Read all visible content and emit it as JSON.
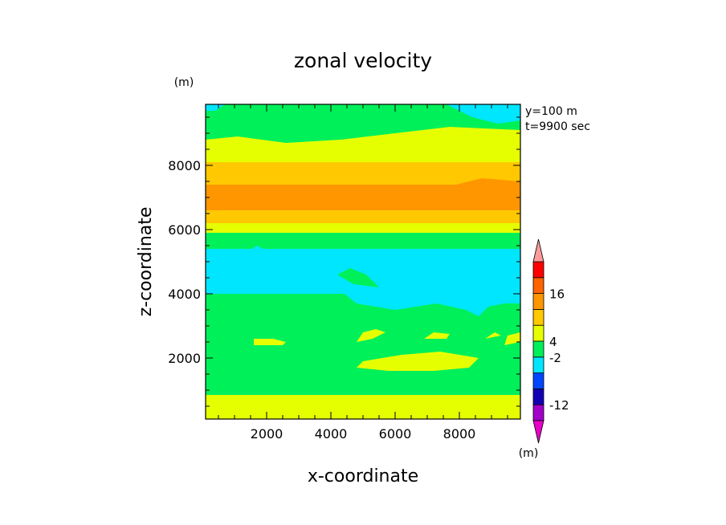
{
  "chart_data": {
    "type": "heatmap",
    "title": "zonal velocity",
    "xlabel": "x-coordinate",
    "ylabel": "z-coordinate",
    "x_unit": "(m)",
    "y_unit": "(m)",
    "info": [
      "y=100 m",
      "t=9900 sec"
    ],
    "xlim": [
      100,
      9900
    ],
    "ylim": [
      100,
      9900
    ],
    "xticks": [
      2000,
      4000,
      6000,
      8000
    ],
    "yticks": [
      2000,
      4000,
      6000,
      8000
    ],
    "colorbar": {
      "unit": "(m)",
      "labels": [
        {
          "text": "16",
          "index": 8
        },
        {
          "text": "4",
          "index": 5
        },
        {
          "text": "-2",
          "index": 4
        },
        {
          "text": "-12",
          "index": 1
        }
      ]
    },
    "levels": [
      {
        "color": "#e800c8"
      },
      {
        "color": "#a000c8"
      },
      {
        "color": "#1400b4"
      },
      {
        "color": "#0046ff"
      },
      {
        "color": "#00e6ff"
      },
      {
        "color": "#00f05a"
      },
      {
        "color": "#e6ff00"
      },
      {
        "color": "#ffc800"
      },
      {
        "color": "#ff9600"
      },
      {
        "color": "#ff6400"
      },
      {
        "color": "#ff0000"
      },
      {
        "color": "#ff9a9a"
      }
    ],
    "bands": [
      {
        "z": [
          100,
          300
        ],
        "level": 6
      },
      {
        "z": [
          300,
          850
        ],
        "level": 6
      },
      {
        "z": [
          850,
          2000
        ],
        "level": 5
      },
      {
        "z": [
          2000,
          3000
        ],
        "level": 5
      },
      {
        "z": [
          3000,
          4000
        ],
        "level": 5
      },
      {
        "z": [
          4000,
          5400
        ],
        "level": 4
      },
      {
        "z": [
          5400,
          5900
        ],
        "level": 5
      },
      {
        "z": [
          5900,
          6200
        ],
        "level": 6
      },
      {
        "z": [
          6200,
          6600
        ],
        "level": 7
      },
      {
        "z": [
          6600,
          7400
        ],
        "level": 8
      },
      {
        "z": [
          7400,
          8100
        ],
        "level": 7
      },
      {
        "z": [
          8100,
          8700
        ],
        "level": 6
      },
      {
        "z": [
          8700,
          9500
        ],
        "level": 5
      },
      {
        "z": [
          9500,
          9900
        ],
        "level": 5
      }
    ],
    "patches": [
      {
        "level": 6,
        "points": [
          [
            5000,
            1900
          ],
          [
            6200,
            2100
          ],
          [
            7400,
            2200
          ],
          [
            8600,
            2000
          ],
          [
            8300,
            1700
          ],
          [
            7200,
            1600
          ],
          [
            5800,
            1600
          ],
          [
            4800,
            1700
          ]
        ]
      },
      {
        "level": 6,
        "points": [
          [
            1600,
            2400
          ],
          [
            2500,
            2400
          ],
          [
            2600,
            2500
          ],
          [
            2200,
            2600
          ],
          [
            1600,
            2600
          ]
        ]
      },
      {
        "level": 6,
        "points": [
          [
            4800,
            2500
          ],
          [
            5300,
            2600
          ],
          [
            5700,
            2800
          ],
          [
            5400,
            2900
          ],
          [
            5000,
            2800
          ]
        ]
      },
      {
        "level": 6,
        "points": [
          [
            6900,
            2600
          ],
          [
            7600,
            2600
          ],
          [
            7700,
            2750
          ],
          [
            7200,
            2800
          ]
        ]
      },
      {
        "level": 6,
        "points": [
          [
            8800,
            2600
          ],
          [
            9300,
            2700
          ],
          [
            9100,
            2800
          ]
        ]
      },
      {
        "level": 6,
        "points": [
          [
            9400,
            2400
          ],
          [
            9900,
            2500
          ],
          [
            9900,
            2800
          ],
          [
            9500,
            2700
          ]
        ]
      },
      {
        "level": 6,
        "points": [
          [
            3400,
            100
          ],
          [
            4300,
            100
          ],
          [
            4000,
            250
          ],
          [
            3600,
            250
          ]
        ]
      },
      {
        "level": 4,
        "points": [
          [
            100,
            5300
          ],
          [
            700,
            5400
          ],
          [
            1400,
            5300
          ],
          [
            1700,
            5500
          ],
          [
            2300,
            5200
          ],
          [
            3400,
            5400
          ],
          [
            4200,
            5000
          ],
          [
            5300,
            4600
          ],
          [
            6800,
            5000
          ],
          [
            8200,
            5200
          ],
          [
            9900,
            5200
          ],
          [
            9900,
            3700
          ],
          [
            9400,
            3700
          ],
          [
            8900,
            3600
          ],
          [
            8600,
            3300
          ],
          [
            8200,
            3500
          ],
          [
            7300,
            3700
          ],
          [
            6000,
            3500
          ],
          [
            4800,
            3700
          ],
          [
            4300,
            4100
          ],
          [
            3100,
            4400
          ],
          [
            2000,
            4100
          ],
          [
            1100,
            4200
          ],
          [
            100,
            4100
          ]
        ]
      },
      {
        "level": 4,
        "points": [
          [
            7600,
            9900
          ],
          [
            9900,
            9900
          ],
          [
            9900,
            9400
          ],
          [
            9200,
            9300
          ],
          [
            8400,
            9500
          ]
        ]
      },
      {
        "level": 4,
        "points": [
          [
            100,
            9900
          ],
          [
            700,
            9900
          ],
          [
            400,
            9700
          ],
          [
            100,
            9700
          ]
        ]
      },
      {
        "level": 5,
        "points": [
          [
            4200,
            4600
          ],
          [
            4700,
            4300
          ],
          [
            5500,
            4200
          ],
          [
            5100,
            4600
          ],
          [
            4600,
            4800
          ]
        ]
      },
      {
        "level": 8,
        "points": [
          [
            100,
            6600
          ],
          [
            900,
            6600
          ],
          [
            1300,
            6800
          ],
          [
            700,
            7200
          ],
          [
            100,
            7300
          ]
        ]
      },
      {
        "level": 8,
        "points": [
          [
            6800,
            6600
          ],
          [
            8200,
            6600
          ],
          [
            9900,
            6600
          ],
          [
            9900,
            7500
          ],
          [
            8700,
            7600
          ],
          [
            7500,
            7300
          ],
          [
            7000,
            7000
          ]
        ]
      },
      {
        "level": 8,
        "points": [
          [
            3300,
            7200
          ],
          [
            3600,
            7000
          ],
          [
            4000,
            7050
          ],
          [
            3800,
            7300
          ],
          [
            3400,
            7400
          ]
        ]
      },
      {
        "level": 8,
        "points": [
          [
            4400,
            7300
          ],
          [
            4600,
            7200
          ],
          [
            4800,
            7350
          ],
          [
            4500,
            7400
          ]
        ]
      },
      {
        "level": 6,
        "points": [
          [
            1100,
            8900
          ],
          [
            2600,
            8700
          ],
          [
            4300,
            8800
          ],
          [
            6000,
            9000
          ],
          [
            7700,
            9200
          ],
          [
            9900,
            9100
          ],
          [
            9900,
            8700
          ],
          [
            8200,
            8600
          ],
          [
            6500,
            8700
          ],
          [
            4600,
            8500
          ],
          [
            2600,
            8400
          ],
          [
            1000,
            8500
          ],
          [
            100,
            8600
          ],
          [
            100,
            8800
          ]
        ]
      },
      {
        "level": 7,
        "points": [
          [
            4300,
            7800
          ],
          [
            5800,
            7900
          ],
          [
            7200,
            8000
          ],
          [
            7800,
            7800
          ],
          [
            6300,
            7600
          ],
          [
            5000,
            7600
          ]
        ]
      }
    ]
  }
}
